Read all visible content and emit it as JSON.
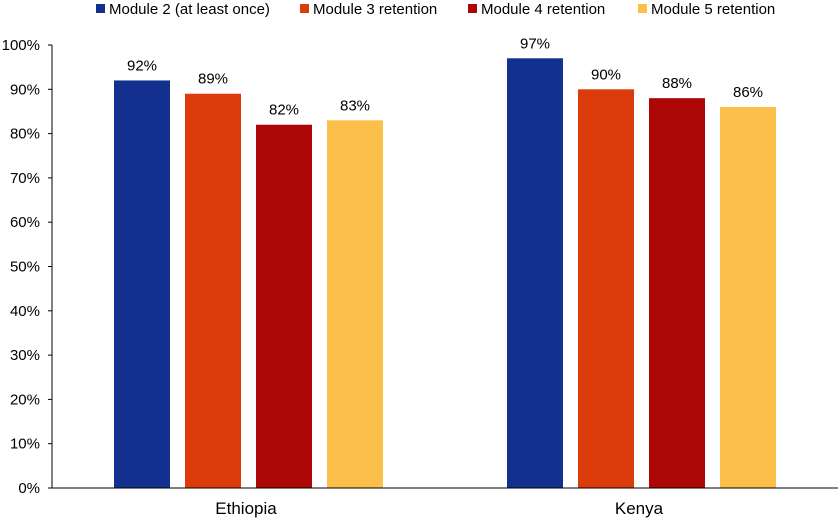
{
  "chart_data": {
    "type": "bar",
    "title": "",
    "xlabel": "",
    "ylabel": "",
    "ylim": [
      0,
      100
    ],
    "yticks": [
      "0%",
      "10%",
      "20%",
      "30%",
      "40%",
      "50%",
      "60%",
      "70%",
      "80%",
      "90%",
      "100%"
    ],
    "grid": false,
    "legend_position": "top",
    "categories": [
      "Ethiopia",
      "Kenya"
    ],
    "series": [
      {
        "name": "Module 2 (at least once)",
        "color": "#13308f",
        "values": [
          92,
          97
        ],
        "labels": [
          "92%",
          "97%"
        ]
      },
      {
        "name": "Module 3 retention",
        "color": "#dc3c0c",
        "values": [
          89,
          90
        ],
        "labels": [
          "89%",
          "90%"
        ]
      },
      {
        "name": "Module 4 retention",
        "color": "#ac0606",
        "values": [
          82,
          88
        ],
        "labels": [
          "82%",
          "88%"
        ]
      },
      {
        "name": "Module 5 retention",
        "color": "#fcbf4a",
        "values": [
          83,
          86
        ],
        "labels": [
          "83%",
          "86%"
        ]
      }
    ]
  }
}
